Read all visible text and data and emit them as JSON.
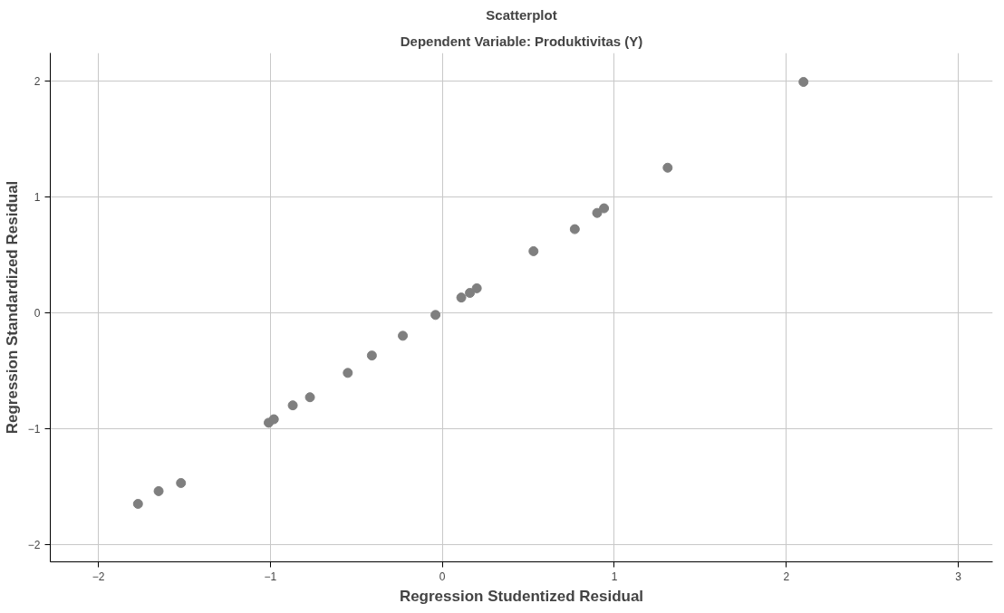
{
  "chart_data": {
    "type": "scatter",
    "title": "Scatterplot",
    "subtitle": "Dependent Variable: Produktivitas (Y)",
    "xlabel": "Regression Studentized Residual",
    "ylabel": "Regression Standardized Residual",
    "x": [
      -1.77,
      -1.65,
      -1.52,
      -1.01,
      -0.98,
      -0.87,
      -0.77,
      -0.55,
      -0.41,
      -0.23,
      -0.04,
      0.11,
      0.16,
      0.2,
      0.53,
      0.77,
      0.9,
      0.94,
      1.31,
      2.1
    ],
    "series": [
      {
        "color": "#7f7f7f",
        "values": [
          -1.65,
          -1.54,
          -1.47,
          -0.95,
          -0.92,
          -0.8,
          -0.73,
          -0.52,
          -0.37,
          -0.2,
          -0.02,
          0.13,
          0.17,
          0.21,
          0.53,
          0.72,
          0.86,
          0.9,
          1.25,
          1.99
        ]
      }
    ],
    "xlim": [
      -2.28,
      3.2
    ],
    "ylim": [
      -2.15,
      2.24
    ],
    "xticks": [
      -2,
      -1,
      0,
      1,
      2,
      3
    ],
    "yticks": [
      -2,
      -1,
      0,
      1,
      2
    ],
    "grid": true,
    "marker": "circle"
  }
}
